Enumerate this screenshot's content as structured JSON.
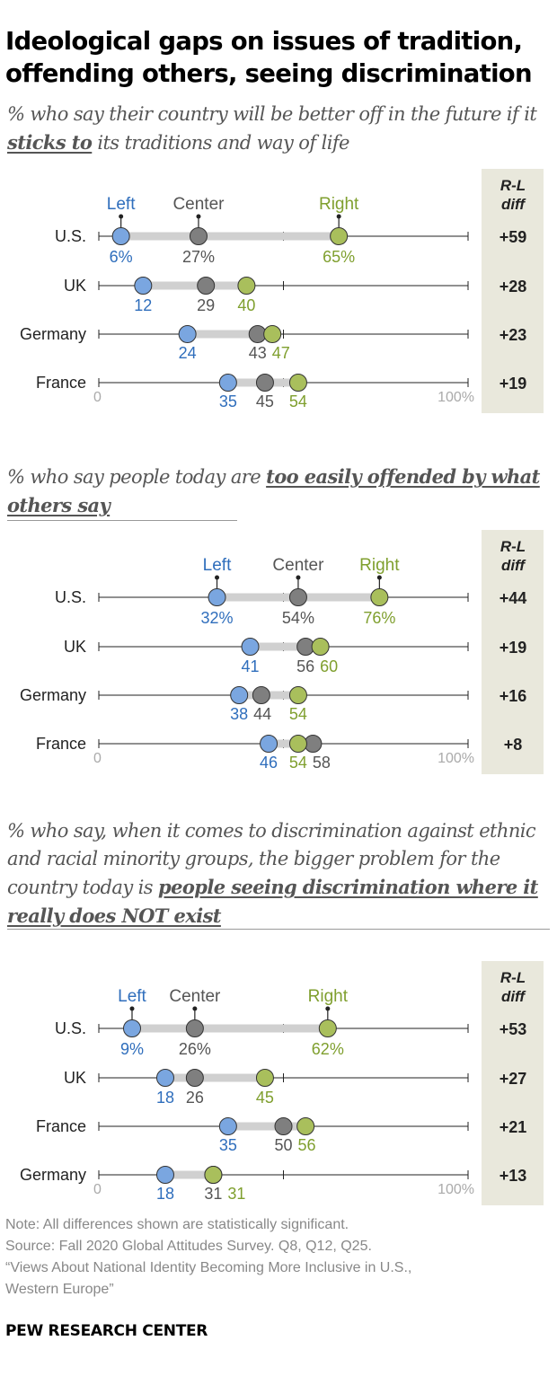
{
  "title": "Ideological gaps on issues of tradition, offending others, seeing discrimination",
  "legend": {
    "left": "Left",
    "center": "Center",
    "right": "Right"
  },
  "diff_header": [
    "R-L",
    "diff"
  ],
  "axis": {
    "min_label": "0",
    "max_label": "100%"
  },
  "colors": {
    "left": "#7aa6e0",
    "left_text": "#2f6ebc",
    "center": "#7f7f7f",
    "center_text": "#555555",
    "right": "#a9bf5c",
    "right_text": "#7f9f2e",
    "bar": "#d0d0d0",
    "diff_bg": "#e9e8dc"
  },
  "panels": [
    {
      "subtitle": {
        "pre": "% who say their country will be better off in the future if it ",
        "em": "sticks to",
        "post": " its traditions and way of life"
      },
      "chart_data": {
        "type": "dot",
        "xlim": [
          0,
          100
        ],
        "series": [
          "Left",
          "Center",
          "Right"
        ],
        "rows": [
          {
            "country": "U.S.",
            "left": 6,
            "center": 27,
            "right": 65,
            "diff": "+59",
            "left_label": "6%",
            "center_label": "27%",
            "right_label": "65%"
          },
          {
            "country": "UK",
            "left": 12,
            "center": 29,
            "right": 40,
            "diff": "+28",
            "left_label": "12",
            "center_label": "29",
            "right_label": "40"
          },
          {
            "country": "Germany",
            "left": 24,
            "center": 43,
            "right": 47,
            "diff": "+23",
            "left_label": "24",
            "center_label": "43",
            "right_label": "47"
          },
          {
            "country": "France",
            "left": 35,
            "center": 45,
            "right": 54,
            "diff": "+19",
            "left_label": "35",
            "center_label": "45",
            "right_label": "54"
          }
        ]
      }
    },
    {
      "subtitle": {
        "pre": "% who say people today are ",
        "em": "too easily offended by what others say",
        "post": ""
      },
      "chart_data": {
        "type": "dot",
        "xlim": [
          0,
          100
        ],
        "series": [
          "Left",
          "Center",
          "Right"
        ],
        "rows": [
          {
            "country": "U.S.",
            "left": 32,
            "center": 54,
            "right": 76,
            "diff": "+44",
            "left_label": "32%",
            "center_label": "54%",
            "right_label": "76%"
          },
          {
            "country": "UK",
            "left": 41,
            "center": 56,
            "right": 60,
            "diff": "+19",
            "left_label": "41",
            "center_label": "56",
            "right_label": "60"
          },
          {
            "country": "Germany",
            "left": 38,
            "center": 44,
            "right": 54,
            "diff": "+16",
            "left_label": "38",
            "center_label": "44",
            "right_label": "54"
          },
          {
            "country": "France",
            "left": 46,
            "center": 58,
            "right": 54,
            "diff": "+8",
            "left_label": "46",
            "center_label": "58",
            "right_label": "54"
          }
        ]
      }
    },
    {
      "subtitle": {
        "pre": "% who say, when it comes to discrimination against ethnic and racial minority groups, the bigger problem for the country today is ",
        "em": "people seeing discrimination where it really does NOT exist",
        "post": ""
      },
      "chart_data": {
        "type": "dot",
        "xlim": [
          0,
          100
        ],
        "series": [
          "Left",
          "Center",
          "Right"
        ],
        "rows": [
          {
            "country": "U.S.",
            "left": 9,
            "center": 26,
            "right": 62,
            "diff": "+53",
            "left_label": "9%",
            "center_label": "26%",
            "right_label": "62%"
          },
          {
            "country": "UK",
            "left": 18,
            "center": 26,
            "right": 45,
            "diff": "+27",
            "left_label": "18",
            "center_label": "26",
            "right_label": "45"
          },
          {
            "country": "France",
            "left": 35,
            "center": 50,
            "right": 56,
            "diff": "+21",
            "left_label": "35",
            "center_label": "50",
            "right_label": "56"
          },
          {
            "country": "Germany",
            "left": 18,
            "center": 31,
            "right": 31,
            "diff": "+13",
            "left_label": "18",
            "center_label": "31",
            "right_label": "31"
          }
        ]
      }
    }
  ],
  "notes": [
    "Note: All differences shown are statistically significant.",
    "Source: Fall 2020 Global Attitudes Survey. Q8, Q12, Q25.",
    "“Views About National Identity Becoming More Inclusive in U.S.,",
    "Western Europe”"
  ],
  "brand": "PEW RESEARCH CENTER"
}
